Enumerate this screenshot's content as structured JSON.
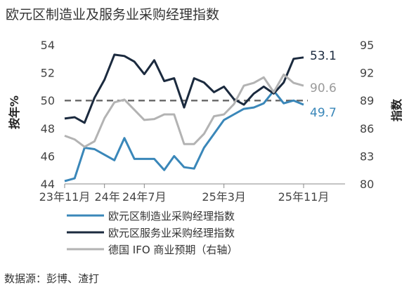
{
  "title": "欧元区制造业及服务业采购经理指数",
  "source": "数据源：彭博、渣打",
  "colors": {
    "manufacturing": "#3a87b9",
    "services": "#1b2a3e",
    "ifo": "#b3b3b3",
    "reference": "#6e6e6e",
    "axis": "#888888"
  },
  "chart_data": {
    "type": "line",
    "x": [
      "23年11月",
      "23年12月",
      "24年1月",
      "24年2月",
      "24年3月",
      "24年4月",
      "24年5月",
      "24年6月",
      "24年7月",
      "24年8月",
      "24年9月",
      "24年10月",
      "24年11月",
      "24年12月",
      "25年1月",
      "25年2月",
      "25年3月",
      "25年4月",
      "25年5月",
      "25年6月",
      "25年7月",
      "25年8月",
      "25年9月",
      "25年10月",
      "25年11月"
    ],
    "x_tick_labels": [
      "23年11月",
      "24年7月",
      "25年3月",
      "25年11月"
    ],
    "x_tick_indices": [
      0,
      8,
      16,
      24
    ],
    "secondary_tick_label": "24年",
    "secondary_tick_index": 4,
    "ylabel_left": "按年%",
    "ylabel_right": "指数",
    "ylim_left": [
      44,
      54
    ],
    "ylim_right": [
      80,
      95
    ],
    "yticks_left": [
      "44",
      "46",
      "48",
      "50",
      "52",
      "54"
    ],
    "yticks_right": [
      "80",
      "83",
      "86",
      "89",
      "92",
      "95"
    ],
    "reference_line": 50,
    "series": [
      {
        "name": "欧元区制造业采购经理指数",
        "axis": "left",
        "values": [
          44.2,
          44.4,
          46.6,
          46.5,
          46.1,
          45.7,
          47.3,
          45.8,
          45.8,
          45.8,
          45.0,
          46.0,
          45.2,
          45.1,
          46.6,
          47.6,
          48.6,
          49.0,
          49.4,
          49.5,
          49.8,
          50.7,
          49.8,
          50.0,
          49.7
        ]
      },
      {
        "name": "欧元区服务业采购经理指数",
        "axis": "left",
        "values": [
          48.7,
          48.8,
          48.4,
          50.2,
          51.5,
          53.3,
          53.2,
          52.8,
          51.9,
          52.9,
          51.4,
          51.6,
          49.5,
          51.6,
          51.3,
          50.6,
          51.0,
          50.1,
          49.7,
          50.5,
          51.0,
          50.5,
          51.3,
          53.0,
          53.1
        ]
      },
      {
        "name": "德国 IFO 商业预期（右轴）",
        "axis": "right",
        "values": [
          85.2,
          84.8,
          84.0,
          84.6,
          87.1,
          88.8,
          89.1,
          88.0,
          86.9,
          87.0,
          87.5,
          87.5,
          84.3,
          84.3,
          85.4,
          87.3,
          87.5,
          88.6,
          90.6,
          90.9,
          91.5,
          89.9,
          91.8,
          90.9,
          90.6
        ]
      }
    ],
    "end_labels": [
      "49.7",
      "53.1",
      "90.6"
    ],
    "legend_position": "bottom"
  }
}
